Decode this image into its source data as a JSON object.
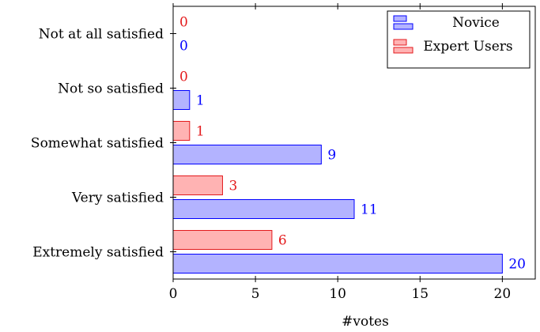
{
  "chart_data": {
    "type": "bar",
    "orientation": "horizontal",
    "categories": [
      "Extremely satisfied",
      "Very satisfied",
      "Somewhat satisfied",
      "Not so satisfied",
      "Not at all satisfied"
    ],
    "series": [
      {
        "name": "Novice",
        "values": [
          20,
          11,
          9,
          1,
          0
        ],
        "color": "#0000ff",
        "fill": "#b3b3ff"
      },
      {
        "name": "Expert Users",
        "values": [
          6,
          3,
          1,
          0,
          0
        ],
        "color": "#e31a1c",
        "fill": "#ffb3b3"
      }
    ],
    "xlabel": "#votes",
    "ylabel": "",
    "xlim": [
      0,
      22
    ],
    "xticks": [
      0,
      5,
      10,
      15,
      20
    ],
    "grid": false,
    "legend_position": "top-right"
  }
}
